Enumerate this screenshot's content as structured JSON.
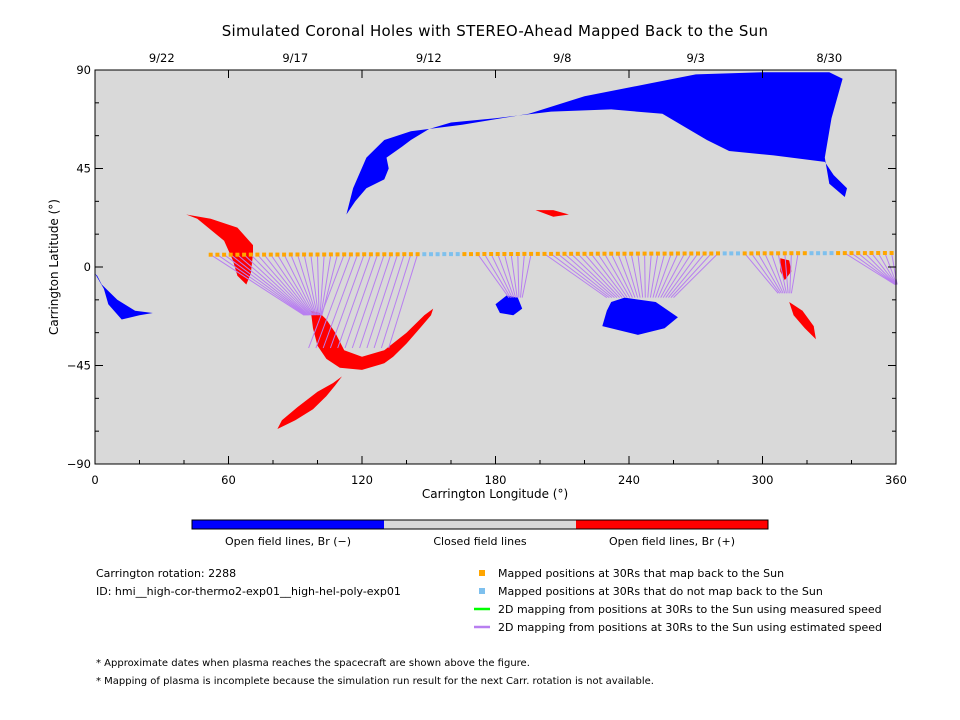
{
  "chart_data": {
    "type": "scatter",
    "title": "Simulated Coronal Holes with STEREO-Ahead Mapped Back to the Sun",
    "xlabel": "Carrington Longitude (°)",
    "ylabel": "Carrington Latitude (°)",
    "xlim": [
      0,
      360
    ],
    "ylim": [
      -90,
      90
    ],
    "x_ticks": [
      "0",
      "60",
      "120",
      "180",
      "240",
      "300",
      "360"
    ],
    "y_ticks": [
      "90",
      "45",
      "0",
      "−45",
      "−90"
    ],
    "top_axis": {
      "dates": [
        {
          "label": "9/22",
          "lon": 30
        },
        {
          "label": "9/17",
          "lon": 90
        },
        {
          "label": "9/12",
          "lon": 150
        },
        {
          "label": "9/8",
          "lon": 210
        },
        {
          "label": "9/3",
          "lon": 270
        },
        {
          "label": "8/30",
          "lon": 330
        }
      ]
    },
    "colors": {
      "background": "#d9d9d9",
      "open_negative": "#0000ff",
      "open_positive": "#ff0000",
      "maps_back": "#ffa500",
      "no_map_back": "#7ec0ee",
      "measured_speed": "#00ff00",
      "estimated_speed": "#b87ff0"
    },
    "colorbar": {
      "negative_label": "Open field lines, Br (−)",
      "closed_label": "Closed field lines",
      "positive_label": "Open field lines, Br (+)"
    },
    "coronal_holes": [
      {
        "polarity": "negative",
        "points": [
          [
            113,
            24
          ],
          [
            116,
            36
          ],
          [
            122,
            50
          ],
          [
            130,
            58
          ],
          [
            142,
            62
          ],
          [
            165,
            65
          ],
          [
            195,
            70
          ],
          [
            220,
            78
          ],
          [
            250,
            84
          ],
          [
            270,
            88
          ],
          [
            300,
            89
          ],
          [
            330,
            89
          ],
          [
            336,
            86
          ],
          [
            331,
            68
          ],
          [
            328,
            50
          ],
          [
            330,
            38
          ],
          [
            337,
            32
          ],
          [
            338,
            36
          ],
          [
            332,
            42
          ],
          [
            328,
            48
          ],
          [
            305,
            51
          ],
          [
            285,
            53
          ],
          [
            275,
            58
          ],
          [
            255,
            70
          ],
          [
            232,
            72
          ],
          [
            205,
            71
          ],
          [
            180,
            68
          ],
          [
            160,
            66
          ],
          [
            150,
            63
          ],
          [
            142,
            58
          ],
          [
            138,
            55
          ],
          [
            131,
            50
          ],
          [
            132,
            45
          ],
          [
            130,
            40
          ],
          [
            122,
            36
          ],
          [
            117,
            30
          ]
        ]
      },
      {
        "polarity": "negative",
        "points": [
          [
            0,
            -3
          ],
          [
            4,
            -10
          ],
          [
            6,
            -17
          ],
          [
            12,
            -24
          ],
          [
            20,
            -22
          ],
          [
            26,
            -21
          ],
          [
            18,
            -20
          ],
          [
            10,
            -15
          ],
          [
            3,
            -8
          ],
          [
            1,
            -4
          ]
        ]
      },
      {
        "polarity": "negative",
        "points": [
          [
            180,
            -17
          ],
          [
            182,
            -21
          ],
          [
            188,
            -22
          ],
          [
            192,
            -19
          ],
          [
            190,
            -14
          ],
          [
            185,
            -13
          ]
        ]
      },
      {
        "polarity": "negative",
        "points": [
          [
            230,
            -20
          ],
          [
            228,
            -27
          ],
          [
            236,
            -29
          ],
          [
            244,
            -31
          ],
          [
            256,
            -28
          ],
          [
            262,
            -23
          ],
          [
            252,
            -16
          ],
          [
            238,
            -14
          ],
          [
            232,
            -16
          ]
        ]
      },
      {
        "polarity": "positive",
        "points": [
          [
            41,
            24
          ],
          [
            52,
            22
          ],
          [
            64,
            18
          ],
          [
            71,
            10
          ],
          [
            71,
            6
          ],
          [
            70,
            -3
          ],
          [
            68,
            -8
          ],
          [
            64,
            -4
          ],
          [
            62,
            3
          ],
          [
            58,
            12
          ],
          [
            46,
            22
          ]
        ]
      },
      {
        "polarity": "positive",
        "points": [
          [
            97,
            -20
          ],
          [
            98,
            -28
          ],
          [
            100,
            -36
          ],
          [
            104,
            -42
          ],
          [
            110,
            -46
          ],
          [
            120,
            -47
          ],
          [
            130,
            -44
          ],
          [
            134,
            -41
          ],
          [
            140,
            -35
          ],
          [
            146,
            -28
          ],
          [
            151,
            -22
          ],
          [
            152,
            -19
          ],
          [
            148,
            -22
          ],
          [
            140,
            -30
          ],
          [
            130,
            -38
          ],
          [
            120,
            -41
          ],
          [
            112,
            -38
          ],
          [
            108,
            -30
          ],
          [
            104,
            -24
          ],
          [
            101,
            -21
          ]
        ]
      },
      {
        "polarity": "positive",
        "points": [
          [
            82,
            -74
          ],
          [
            90,
            -70
          ],
          [
            98,
            -65
          ],
          [
            104,
            -59
          ],
          [
            108,
            -54
          ],
          [
            111,
            -50
          ],
          [
            107,
            -53
          ],
          [
            100,
            -57
          ],
          [
            91,
            -64
          ],
          [
            84,
            -70
          ]
        ]
      },
      {
        "polarity": "positive",
        "points": [
          [
            198,
            26
          ],
          [
            206,
            26
          ],
          [
            213,
            24
          ],
          [
            206,
            23
          ]
        ]
      },
      {
        "polarity": "positive",
        "points": [
          [
            308,
            4
          ],
          [
            312,
            3
          ],
          [
            313,
            -2
          ],
          [
            310,
            -6
          ],
          [
            308,
            -2
          ]
        ]
      },
      {
        "polarity": "positive",
        "points": [
          [
            312,
            -16
          ],
          [
            318,
            -20
          ],
          [
            323,
            -27
          ],
          [
            324,
            -33
          ],
          [
            319,
            -28
          ],
          [
            314,
            -22
          ]
        ]
      }
    ],
    "mapped_positions": {
      "lon_start": 52,
      "lon_step": 3,
      "count": 103,
      "lat_start": 5.6,
      "lat_end": 6.4,
      "no_map_back_ranges": [
        [
          147,
          163
        ],
        [
          283,
          289
        ],
        [
          320,
          332
        ]
      ]
    },
    "mappings": [
      {
        "lon_range": [
          52,
          110
        ],
        "target": [
          98,
          -22
        ],
        "spread": 8
      },
      {
        "lon_range": [
          110,
          145
        ],
        "target": [
          114,
          -37
        ],
        "spread": 36
      },
      {
        "lon_range": [
          170,
          197
        ],
        "target": [
          189,
          -14
        ],
        "spread": 6
      },
      {
        "lon_range": [
          202,
          282
        ],
        "target": [
          245,
          -14
        ],
        "spread": 30
      },
      {
        "lon_range": [
          290,
          318
        ],
        "target": [
          310,
          -12
        ],
        "spread": 6
      },
      {
        "lon_range": [
          335,
          360
        ],
        "target": [
          360,
          -8
        ],
        "spread": 1
      }
    ],
    "legend": [
      {
        "symbol": "square",
        "color": "#ffa500",
        "text": "Mapped positions at 30Rs that map back to the Sun"
      },
      {
        "symbol": "square",
        "color": "#7ec0ee",
        "text": "Mapped positions at 30Rs that do not map back to the Sun"
      },
      {
        "symbol": "line",
        "color": "#00ff00",
        "text": "2D mapping from positions at 30Rs to the Sun using measured speed"
      },
      {
        "symbol": "line",
        "color": "#b87ff0",
        "text": "2D mapping from positions at 30Rs to the Sun using estimated speed"
      }
    ]
  },
  "info": {
    "rotation": "Carrington rotation: 2288",
    "id": "ID: hmi__high-cor-thermo2-exp01__high-hel-poly-exp01"
  },
  "notes": [
    "* Approximate dates when plasma reaches the spacecraft are shown above the figure.",
    "* Mapping of plasma is incomplete because the simulation run result for the next Carr. rotation is not available."
  ]
}
